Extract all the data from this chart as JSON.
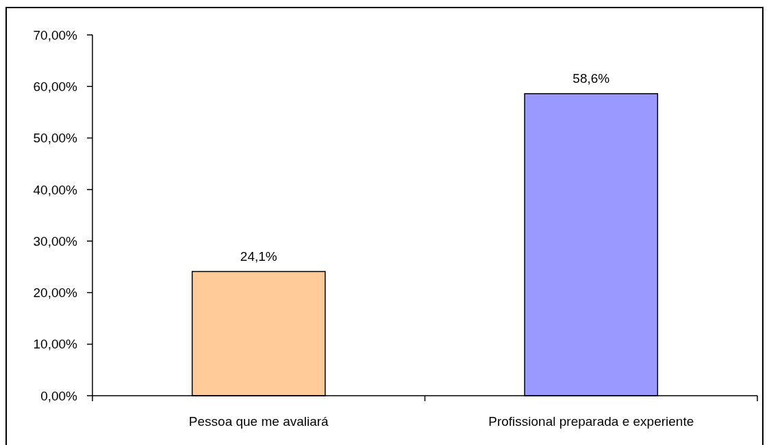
{
  "chart_data": {
    "type": "bar",
    "categories": [
      "Pessoa que me avaliará",
      "Profissional preparada e experiente"
    ],
    "values": [
      24.1,
      58.6
    ],
    "colors": [
      "#ffcc99",
      "#9999ff"
    ],
    "value_labels": [
      "24,1%",
      "58,6%"
    ],
    "ylim": [
      0,
      70
    ],
    "yticks": [
      {
        "value": 0,
        "label": "0,00%"
      },
      {
        "value": 10,
        "label": "10,00%"
      },
      {
        "value": 20,
        "label": "20,00%"
      },
      {
        "value": 30,
        "label": "30,00%"
      },
      {
        "value": 40,
        "label": "40,00%"
      },
      {
        "value": 50,
        "label": "50,00%"
      },
      {
        "value": 60,
        "label": "60,00%"
      },
      {
        "value": 70,
        "label": "70,00%"
      }
    ]
  }
}
